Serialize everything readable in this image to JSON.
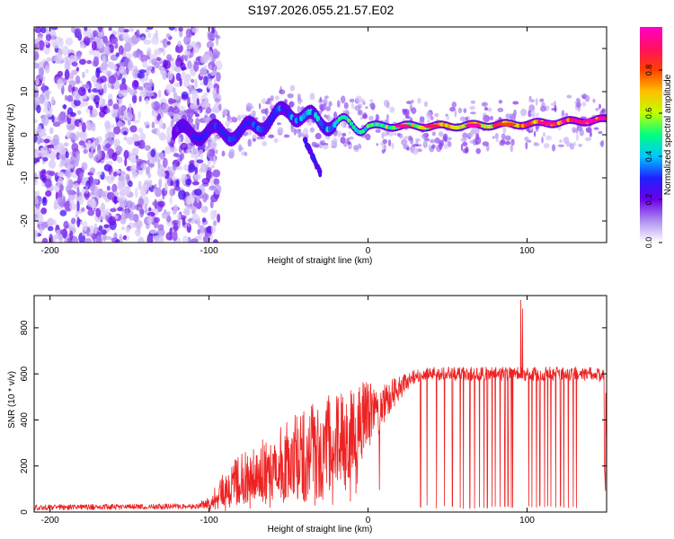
{
  "title": "S197.2026.055.21.57.E02",
  "chart_data": [
    {
      "type": "heatmap",
      "name": "spectrogram",
      "xlabel": "Height of straight line (km)",
      "ylabel": "Frequency (Hz)",
      "xlim": [
        -210,
        150
      ],
      "ylim": [
        -25,
        25
      ],
      "xticks": [
        -200,
        -100,
        0,
        100
      ],
      "yticks": [
        -20,
        -10,
        0,
        10,
        20
      ],
      "colorbar": {
        "label": "Normalized spectral amplitude",
        "range": [
          0,
          1
        ],
        "ticks": [
          0.0,
          0.2,
          0.4,
          0.6,
          0.8
        ],
        "tick_labels": [
          "0.0",
          "0.2",
          "0.4",
          "0.6",
          "0.8"
        ],
        "colormap": [
          "#ffffff",
          "#b090f0",
          "#6a00e8",
          "#2020ff",
          "#00c8ff",
          "#00ff80",
          "#c0ff00",
          "#ffc000",
          "#ff4000",
          "#ff1060",
          "#ff00c8"
        ]
      },
      "features": [
        {
          "region": "noise",
          "x_range": [
            -210,
            -100
          ],
          "freq_range": [
            -25,
            25
          ],
          "amplitude": "low (0.0-0.15)"
        },
        {
          "region": "signal_track",
          "x": [
            -120,
            -80,
            -50,
            -30,
            0,
            50,
            100,
            150
          ],
          "freq": [
            0.5,
            0.5,
            5.5,
            3,
            2,
            2,
            2.5,
            3.5
          ],
          "amplitude": [
            0.25,
            0.3,
            0.35,
            0.4,
            0.55,
            0.7,
            0.85,
            0.95
          ]
        },
        {
          "region": "descending_branch",
          "x": [
            -40,
            -30
          ],
          "freq": [
            -1,
            -9
          ],
          "amplitude": "0.25"
        }
      ]
    },
    {
      "type": "line",
      "name": "snr",
      "xlabel": "Height of straight line (km)",
      "ylabel": "SNR (10 * v/v)",
      "xlim": [
        -210,
        150
      ],
      "ylim": [
        0,
        940
      ],
      "xticks": [
        -200,
        -100,
        0,
        100
      ],
      "yticks": [
        0,
        200,
        400,
        600,
        800
      ],
      "color": "#ee2222",
      "envelope": {
        "x": [
          -210,
          -110,
          -100,
          -90,
          -80,
          -70,
          -60,
          -50,
          -40,
          -30,
          -20,
          -10,
          0,
          10,
          20,
          30,
          40,
          60,
          80,
          94,
          97,
          100,
          120,
          140,
          148,
          150
        ],
        "y_base": [
          20,
          25,
          40,
          100,
          140,
          170,
          200,
          230,
          250,
          270,
          300,
          350,
          420,
          470,
          540,
          590,
          600,
          600,
          600,
          600,
          600,
          600,
          600,
          600,
          590,
          520
        ],
        "y_spread": [
          12,
          12,
          25,
          80,
          120,
          130,
          150,
          170,
          200,
          220,
          230,
          200,
          150,
          100,
          50,
          30,
          30,
          30,
          30,
          30,
          30,
          30,
          30,
          30,
          30,
          30
        ]
      },
      "peak": {
        "x": 96,
        "y": 920
      },
      "dropouts_x": [
        33,
        37,
        43,
        48,
        53,
        58,
        60,
        64,
        67,
        70,
        73,
        75,
        78,
        80,
        83,
        86,
        88,
        90,
        91,
        101,
        103,
        106,
        108,
        111,
        113,
        115,
        118,
        121,
        123,
        126,
        129,
        131
      ]
    }
  ]
}
